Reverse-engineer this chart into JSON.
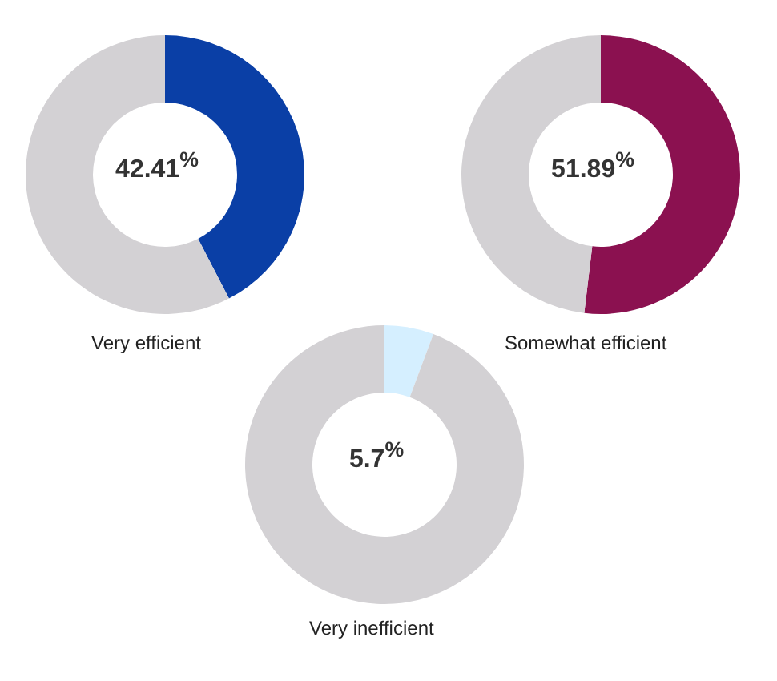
{
  "chart_data": [
    {
      "type": "donut",
      "title": "Very efficient",
      "categories": [
        null,
        null
      ],
      "values": [
        42.41,
        57.59
      ],
      "colors": [
        "#0a3fa6",
        "#d3d1d4"
      ],
      "annotations": [
        "42.41$^{%}$"
      ]
    },
    {
      "type": "donut",
      "title": "Somewhat efficient",
      "categories": [
        null,
        null
      ],
      "values": [
        51.89,
        48.11
      ],
      "colors": [
        "#8b1150",
        "#d3d1d4"
      ],
      "annotations": [
        "51.89$^{%}$"
      ]
    },
    {
      "type": "donut",
      "title": "Very inefficient",
      "categories": [
        null,
        null
      ],
      "values": [
        5.7,
        94.3
      ],
      "colors": [
        "#d5efff",
        "#d3d1d4"
      ],
      "annotations": [
        "5.7$^{%}$"
      ]
    }
  ]
}
